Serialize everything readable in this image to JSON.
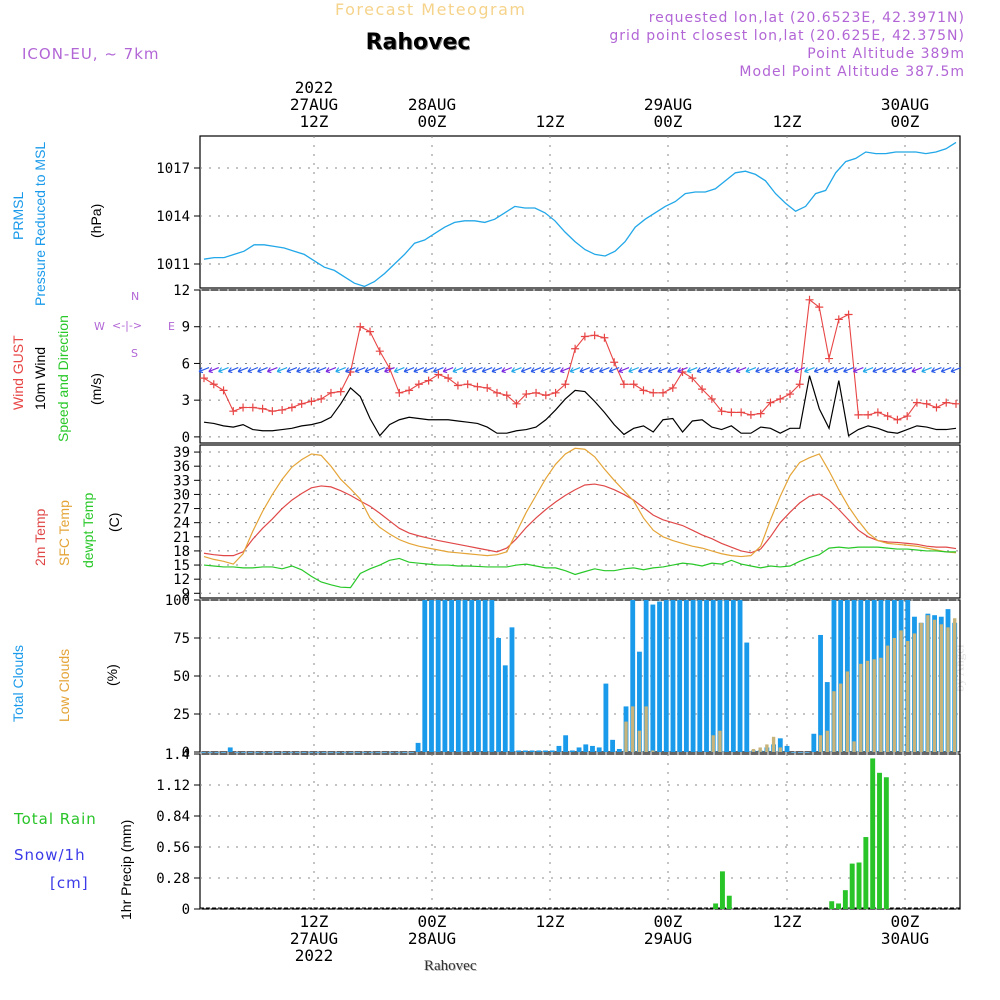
{
  "header": {
    "subtitle": "Forecast Meteogram",
    "location": "Rahovec",
    "model": "ICON-EU, ~ 7km",
    "requested": "requested lon,lat (20.6523E, 42.3971N)",
    "gridpoint": "grid point closest lon,lat (20.625E, 42.375N)",
    "point_alt": "Point Altitude 389m",
    "model_alt": "Model Point Altitude 387.5m"
  },
  "footer_location": "Rahovec",
  "watermark": "by Angel",
  "time_axis": {
    "top_labels": [
      {
        "lines": [
          "2022",
          "27AUG",
          "12Z"
        ]
      },
      {
        "lines": [
          "28AUG",
          "00Z"
        ]
      },
      {
        "lines": [
          "12Z"
        ]
      },
      {
        "lines": [
          "29AUG",
          "00Z"
        ]
      },
      {
        "lines": [
          "12Z"
        ]
      },
      {
        "lines": [
          "30AUG",
          "00Z"
        ]
      }
    ],
    "bottom_labels": [
      {
        "lines": [
          "12Z",
          "27AUG",
          "2022"
        ]
      },
      {
        "lines": [
          "00Z",
          "28AUG"
        ]
      },
      {
        "lines": [
          "12Z"
        ]
      },
      {
        "lines": [
          "00Z",
          "29AUG"
        ]
      },
      {
        "lines": [
          "12Z"
        ]
      },
      {
        "lines": [
          "00Z",
          "30AUG"
        ]
      }
    ]
  },
  "panel_labels": {
    "prmsl_1": "PRMSL",
    "prmsl_2": "Pressure Reduced to MSL",
    "prmsl_unit": "(hPa)",
    "wind_1": "Wind GUST",
    "wind_2": "10m Wind",
    "wind_3": "Speed and Direction",
    "wind_unit": "(m/s)",
    "compass_n": "N",
    "compass_s": "S",
    "compass_w": "W",
    "compass_e": "E",
    "temp_1": "2m Temp",
    "temp_2": "SFC Temp",
    "temp_3": "dewpt Temp",
    "temp_unit": "(C)",
    "cloud_1": "Total Clouds",
    "cloud_2": "Low Clouds",
    "cloud_unit": "(%)",
    "precip_1": "Total   Rain",
    "precip_2": "Snow/1h",
    "precip_3": "[cm]",
    "precip_unit": "1hr Precip (mm)"
  },
  "colors": {
    "pressure": "#22a7e8",
    "gust": "#e84545",
    "wind": "#000000",
    "temp2m": "#e04848",
    "sfctemp": "#e4a437",
    "dewpt": "#28c828",
    "total_cloud": "#1a9aea",
    "low_cloud": "#c8b47a",
    "rain": "#28c428"
  },
  "chart_data": [
    {
      "type": "line",
      "name": "prmsl",
      "ylim": [
        1009.5,
        1019
      ],
      "yticks": [
        1011,
        1014,
        1017
      ],
      "series": [
        {
          "name": "PRMSL",
          "values": [
            1011.3,
            1011.4,
            1011.4,
            1011.6,
            1011.8,
            1012.2,
            1012.2,
            1012.1,
            1012.0,
            1011.8,
            1011.6,
            1011.2,
            1010.8,
            1010.6,
            1010.2,
            1009.8,
            1009.6,
            1009.9,
            1010.4,
            1011.0,
            1011.6,
            1012.3,
            1012.5,
            1012.9,
            1013.3,
            1013.6,
            1013.7,
            1013.7,
            1013.6,
            1013.8,
            1014.2,
            1014.6,
            1014.5,
            1014.5,
            1014.2,
            1013.7,
            1013.0,
            1012.4,
            1011.9,
            1011.6,
            1011.5,
            1011.8,
            1012.4,
            1013.3,
            1013.8,
            1014.2,
            1014.6,
            1014.9,
            1015.4,
            1015.5,
            1015.5,
            1015.7,
            1016.2,
            1016.7,
            1016.8,
            1016.6,
            1016.2,
            1015.4,
            1014.8,
            1014.3,
            1014.6,
            1015.4,
            1015.6,
            1016.7,
            1017.4,
            1017.6,
            1018.0,
            1017.9,
            1017.9,
            1018.0,
            1018.0,
            1018.0,
            1017.9,
            1018.0,
            1018.2,
            1018.6
          ]
        }
      ]
    },
    {
      "type": "line",
      "name": "wind",
      "ylim": [
        -0.5,
        12
      ],
      "yticks": [
        0,
        3,
        6,
        9,
        12
      ],
      "series": [
        {
          "name": "Wind GUST",
          "values": [
            4.8,
            4.3,
            3.8,
            2.1,
            2.4,
            2.4,
            2.3,
            2.1,
            2.2,
            2.4,
            2.7,
            2.9,
            3.1,
            3.6,
            3.7,
            5.3,
            9.0,
            8.6,
            7.0,
            5.6,
            3.6,
            3.8,
            4.3,
            4.6,
            5.1,
            4.8,
            4.2,
            4.3,
            4.1,
            4.0,
            3.6,
            3.4,
            2.7,
            3.5,
            3.6,
            3.4,
            3.6,
            4.3,
            7.2,
            8.2,
            8.3,
            8.1,
            6.1,
            4.3,
            4.3,
            3.8,
            3.6,
            3.6,
            4.0,
            5.3,
            4.8,
            3.9,
            3.1,
            2.1,
            2.0,
            2.0,
            1.8,
            1.9,
            2.8,
            3.1,
            3.5,
            4.3,
            11.2,
            10.6,
            6.4,
            9.6,
            10.0,
            1.8,
            1.8,
            2.0,
            1.7,
            1.4,
            1.7,
            2.8,
            2.7,
            2.4,
            2.8,
            2.7
          ]
        },
        {
          "name": "10m Wind",
          "values": [
            1.2,
            1.1,
            0.9,
            0.8,
            1.0,
            0.6,
            0.5,
            0.5,
            0.6,
            0.7,
            0.9,
            1.0,
            1.2,
            1.6,
            2.7,
            4.0,
            3.3,
            1.5,
            0.1,
            1.0,
            1.4,
            1.6,
            1.5,
            1.4,
            1.4,
            1.4,
            1.3,
            1.2,
            1.1,
            0.8,
            0.3,
            0.3,
            0.5,
            0.6,
            0.8,
            1.4,
            2.2,
            3.1,
            3.8,
            3.7,
            2.9,
            2.0,
            1.0,
            0.2,
            0.7,
            0.9,
            0.4,
            1.4,
            1.5,
            0.4,
            1.3,
            1.4,
            0.8,
            0.6,
            0.9,
            0.3,
            0.3,
            0.8,
            0.7,
            0.3,
            0.7,
            0.7,
            5.0,
            2.3,
            0.7,
            4.6,
            0.1,
            0.6,
            0.9,
            0.7,
            0.4,
            0.3,
            0.6,
            0.9,
            0.8,
            0.6,
            0.6,
            0.7
          ]
        }
      ]
    },
    {
      "type": "line",
      "name": "temperature",
      "ylim": [
        8,
        40.5
      ],
      "yticks": [
        9,
        12,
        15,
        18,
        21,
        24,
        27,
        30,
        33,
        36,
        39
      ],
      "series": [
        {
          "name": "2m Temp",
          "values": [
            17.5,
            17.2,
            17.0,
            17.0,
            17.8,
            20.5,
            22.8,
            24.8,
            27.0,
            28.8,
            30.2,
            31.4,
            31.8,
            31.6,
            30.8,
            29.8,
            28.6,
            27.5,
            26.0,
            24.4,
            22.8,
            21.8,
            21.2,
            20.7,
            20.2,
            19.8,
            19.4,
            19.0,
            18.6,
            18.2,
            17.8,
            18.6,
            20.6,
            23.0,
            25.0,
            26.8,
            28.4,
            29.8,
            31.0,
            32.0,
            32.2,
            31.8,
            31.0,
            30.0,
            28.8,
            27.2,
            25.6,
            24.6,
            24.0,
            23.4,
            22.4,
            21.4,
            20.6,
            19.6,
            18.8,
            18.0,
            17.6,
            18.4,
            21.0,
            24.0,
            26.2,
            28.2,
            29.6,
            30.1,
            28.8,
            26.8,
            24.6,
            22.4,
            21.0,
            20.2,
            19.9,
            19.8,
            19.6,
            19.4,
            19.0,
            18.8,
            18.8,
            18.5
          ]
        },
        {
          "name": "SFC Temp",
          "values": [
            16.8,
            16.2,
            15.8,
            15.2,
            17.4,
            22.2,
            26.4,
            30.0,
            33.2,
            35.8,
            37.4,
            38.6,
            38.3,
            36.0,
            33.2,
            31.2,
            29.0,
            25.0,
            23.0,
            21.6,
            20.4,
            19.6,
            19.0,
            18.6,
            18.2,
            17.8,
            17.6,
            17.4,
            17.2,
            17.0,
            17.2,
            17.8,
            22.0,
            26.2,
            29.8,
            33.4,
            36.4,
            38.6,
            39.8,
            39.6,
            38.0,
            35.4,
            33.0,
            30.8,
            28.6,
            25.0,
            22.4,
            21.0,
            20.2,
            19.6,
            19.0,
            18.6,
            18.0,
            17.4,
            17.0,
            16.8,
            17.0,
            19.0,
            24.6,
            29.6,
            34.0,
            36.8,
            37.8,
            38.6,
            35.0,
            31.0,
            27.4,
            24.4,
            21.8,
            20.2,
            19.6,
            19.4,
            19.2,
            19.0,
            18.6,
            18.2,
            17.8,
            17.6
          ]
        },
        {
          "name": "dewpt Temp",
          "values": [
            15.0,
            14.8,
            14.6,
            14.6,
            14.4,
            14.4,
            14.6,
            14.6,
            14.2,
            14.8,
            14.0,
            12.6,
            11.4,
            10.8,
            10.3,
            10.2,
            13.2,
            14.2,
            15.0,
            16.0,
            16.4,
            15.6,
            15.4,
            15.2,
            15.0,
            15.0,
            14.8,
            14.8,
            14.7,
            14.6,
            14.6,
            14.6,
            15.0,
            15.2,
            14.8,
            14.4,
            14.4,
            13.8,
            13.0,
            13.6,
            14.2,
            13.8,
            13.8,
            14.2,
            14.4,
            14.0,
            14.4,
            14.6,
            15.0,
            15.4,
            15.2,
            14.8,
            15.4,
            15.2,
            16.0,
            15.2,
            14.8,
            14.4,
            14.8,
            14.6,
            14.8,
            15.8,
            16.6,
            17.2,
            18.6,
            18.8,
            18.6,
            18.8,
            18.8,
            18.8,
            18.6,
            18.4,
            18.4,
            18.2,
            18.0,
            18.0,
            17.8,
            17.8
          ]
        }
      ]
    },
    {
      "type": "bar",
      "name": "clouds",
      "ylim": [
        0,
        100
      ],
      "yticks": [
        0,
        25,
        50,
        75,
        100
      ],
      "series": [
        {
          "name": "Total Clouds",
          "values": [
            0,
            0,
            0,
            0,
            3,
            0,
            0,
            0,
            0,
            0,
            0,
            0,
            0,
            0,
            0,
            0,
            0,
            0,
            0,
            0,
            0,
            0,
            0,
            0,
            0,
            0,
            0,
            0,
            0,
            0,
            0,
            0,
            6,
            100,
            100,
            100,
            100,
            100,
            100,
            100,
            100,
            100,
            100,
            100,
            75,
            57,
            82,
            1,
            1,
            1,
            1,
            1,
            1,
            4,
            11,
            1,
            3,
            5,
            4,
            3,
            45,
            8,
            2,
            30,
            100,
            66,
            100,
            97,
            99,
            100,
            100,
            100,
            100,
            100,
            100,
            100,
            100,
            100,
            100,
            100,
            100,
            72,
            1,
            1,
            3,
            5,
            9,
            4,
            0,
            0,
            0,
            12,
            77,
            46,
            100,
            100,
            100,
            100,
            100,
            100,
            100,
            100,
            100,
            100,
            100,
            100,
            89,
            85,
            91,
            90,
            89,
            94,
            85
          ]
        },
        {
          "name": "Low Clouds",
          "values": [
            0,
            0,
            0,
            0,
            0,
            0,
            0,
            0,
            0,
            0,
            0,
            0,
            0,
            0,
            0,
            0,
            0,
            0,
            0,
            0,
            0,
            0,
            0,
            0,
            0,
            0,
            0,
            0,
            0,
            0,
            0,
            0,
            0,
            0,
            0,
            0,
            0,
            0,
            0,
            0,
            0,
            0,
            0,
            0,
            0,
            0,
            0,
            0,
            0,
            0,
            0,
            0,
            0,
            0,
            0,
            0,
            0,
            0,
            0,
            0,
            0,
            0,
            0,
            20,
            30,
            14,
            30,
            1,
            0,
            0,
            0,
            0,
            0,
            0,
            0,
            0,
            11,
            14,
            0,
            0,
            0,
            0,
            2,
            3,
            5,
            10,
            3,
            0,
            0,
            0,
            0,
            0,
            11,
            14,
            40,
            45,
            53,
            7,
            58,
            60,
            61,
            62,
            70,
            75,
            80,
            73,
            78,
            85,
            90,
            87,
            84,
            82,
            88,
            80
          ]
        }
      ]
    },
    {
      "type": "bar",
      "name": "precip",
      "ylim": [
        0,
        1.4
      ],
      "yticks": [
        0,
        0.28,
        0.56,
        0.84,
        1.12,
        1.4
      ],
      "series": [
        {
          "name": "Total Rain",
          "values": [
            0,
            0,
            0,
            0,
            0,
            0,
            0,
            0,
            0,
            0,
            0,
            0,
            0,
            0,
            0,
            0,
            0,
            0,
            0,
            0,
            0,
            0,
            0,
            0,
            0,
            0,
            0,
            0,
            0,
            0,
            0,
            0,
            0,
            0,
            0,
            0,
            0,
            0,
            0,
            0,
            0,
            0,
            0,
            0,
            0,
            0,
            0,
            0,
            0,
            0,
            0,
            0,
            0,
            0,
            0,
            0,
            0,
            0,
            0,
            0,
            0,
            0,
            0,
            0,
            0,
            0,
            0,
            0,
            0,
            0,
            0,
            0,
            0,
            0,
            0,
            0.05,
            0.34,
            0.12,
            0,
            0,
            0,
            0,
            0,
            0,
            0,
            0,
            0,
            0,
            0,
            0,
            0,
            0,
            0.07,
            0.05,
            0.17,
            0.41,
            0.42,
            0.65,
            1.36,
            1.23,
            1.19,
            0,
            0,
            0,
            0,
            0,
            0,
            0,
            0,
            0,
            0
          ]
        }
      ]
    }
  ]
}
